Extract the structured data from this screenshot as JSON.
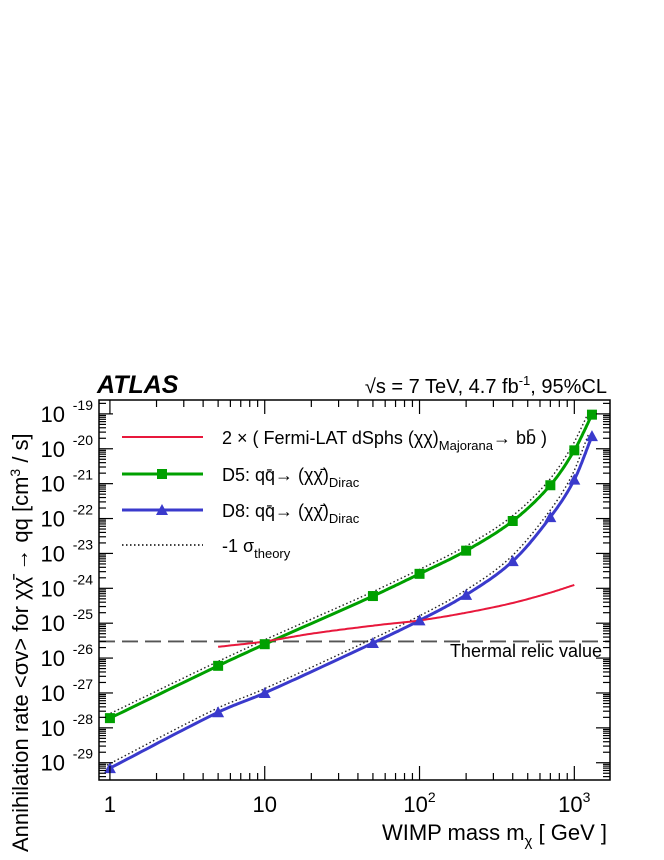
{
  "header": {
    "experiment": "ATLAS",
    "sqrt_symbol": "√s",
    "energy": " = 7 TeV, 4.7 fb",
    "lumi_exp": "-1",
    "cl": ", 95%CL"
  },
  "chart_data": {
    "type": "line",
    "title": "",
    "xlabel": "WIMP mass m",
    "xlabel_sub": "χ",
    "xlabel_unit": " [ GeV ]",
    "ylabel": "Annihilation rate <σv> for χχ̄ → qq  [cm",
    "ylabel_exp": "3",
    "ylabel_unit": " / s]",
    "x_scale": "log",
    "y_scale": "log",
    "xlim": [
      0.85,
      1700
    ],
    "ylim": [
      3.2e-30,
      2.5e-19
    ],
    "x_ticks": [
      {
        "value": 1,
        "base": "1",
        "exp": ""
      },
      {
        "value": 10,
        "base": "10",
        "exp": ""
      },
      {
        "value": 100,
        "base": "10",
        "exp": "2"
      },
      {
        "value": 1000,
        "base": "10",
        "exp": "3"
      }
    ],
    "y_ticks": [
      {
        "value": 1e-29,
        "base": "10",
        "exp": "-29"
      },
      {
        "value": 1e-28,
        "base": "10",
        "exp": "-28"
      },
      {
        "value": 1e-27,
        "base": "10",
        "exp": "-27"
      },
      {
        "value": 1e-26,
        "base": "10",
        "exp": "-26"
      },
      {
        "value": 1e-25,
        "base": "10",
        "exp": "-25"
      },
      {
        "value": 1e-24,
        "base": "10",
        "exp": "-24"
      },
      {
        "value": 1e-23,
        "base": "10",
        "exp": "-23"
      },
      {
        "value": 1e-22,
        "base": "10",
        "exp": "-22"
      },
      {
        "value": 1e-21,
        "base": "10",
        "exp": "-21"
      },
      {
        "value": 1e-20,
        "base": "10",
        "exp": "-20"
      },
      {
        "value": 1e-19,
        "base": "10",
        "exp": "-19"
      }
    ],
    "legend_position": "top-left",
    "series": [
      {
        "name": "D5",
        "label_parts": [
          "D5: qq̄→ (χχ̄)",
          "Dirac"
        ],
        "color": "#00a000",
        "marker": "square",
        "x": [
          1,
          5,
          10,
          50,
          100,
          200,
          400,
          700,
          1000,
          1300
        ],
        "y": [
          1.9e-28,
          6e-27,
          2.5e-26,
          6e-25,
          2.6e-24,
          1.2e-23,
          8.5e-23,
          9e-22,
          9e-21,
          9.5e-20
        ]
      },
      {
        "name": "D8",
        "label_parts": [
          "D8: qq̄→ (χχ̄)",
          "Dirac"
        ],
        "color": "#3a3acc",
        "marker": "triangle",
        "x": [
          1,
          5,
          10,
          50,
          100,
          200,
          400,
          700,
          1000,
          1300
        ],
        "y": [
          7e-30,
          2.8e-28,
          1e-27,
          2.7e-26,
          1.2e-25,
          6.5e-25,
          6e-24,
          1.1e-22,
          1.3e-21,
          2.3e-20
        ]
      },
      {
        "name": "Fermi-LAT",
        "label_parts": [
          "2 × ( Fermi-LAT dSphs (χχ)",
          "Majorana",
          "→ bb̄ )"
        ],
        "color": "#e8183c",
        "marker": "none",
        "x": [
          5,
          10,
          20,
          50,
          100,
          200,
          400,
          700,
          1000
        ],
        "y": [
          2.1e-26,
          3e-26,
          5e-26,
          8.5e-26,
          1.2e-25,
          2e-25,
          3.8e-25,
          7.5e-25,
          1.25e-24
        ]
      }
    ],
    "theory_band": {
      "label": "-1 σ",
      "label_sub": "theory",
      "style": "dotted"
    },
    "thermal_relic": {
      "label": "Thermal relic value",
      "value": 3e-26
    }
  }
}
